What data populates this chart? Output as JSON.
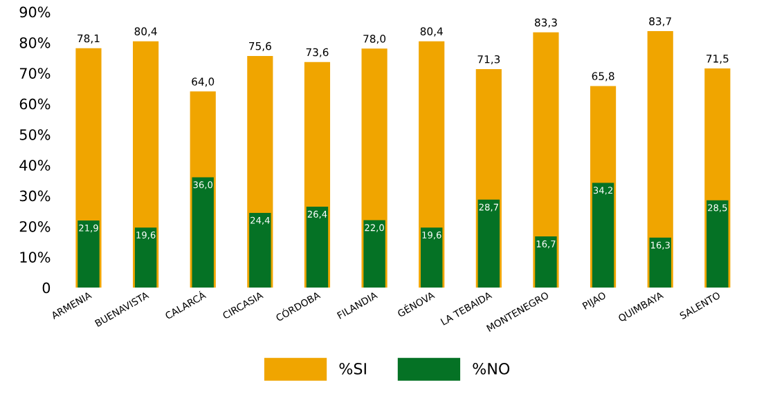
{
  "chart_data": {
    "type": "bar",
    "categories": [
      "ARMENIA",
      "BUENAVISTA",
      "CALARCÁ",
      "CIRCASIA",
      "CÓRDOBA",
      "FILANDIA",
      "GÉNOVA",
      "LA TEBAIDA",
      "MONTENEGRO",
      "PIJAO",
      "QUIMBAYA",
      "SALENTO"
    ],
    "series": [
      {
        "name": "%SI",
        "color": "#f0a500",
        "values": [
          78.1,
          80.4,
          64.0,
          75.6,
          73.6,
          78.0,
          80.4,
          71.3,
          83.3,
          65.8,
          83.7,
          71.5
        ],
        "value_labels": [
          "78,1",
          "80,4",
          "64,0",
          "75,6",
          "73,6",
          "78,0",
          "80,4",
          "71,3",
          "83,3",
          "65,8",
          "83,7",
          "71,5"
        ]
      },
      {
        "name": "%NO",
        "color": "#057225",
        "values": [
          21.9,
          19.6,
          36.0,
          24.4,
          26.4,
          22.0,
          19.6,
          28.7,
          16.7,
          34.2,
          16.3,
          28.5
        ],
        "value_labels": [
          "21,9",
          "19,6",
          "36,0",
          "24,4",
          "26,4",
          "22,0",
          "19,6",
          "28,7",
          "16,7",
          "34,2",
          "16,3",
          "28,5"
        ]
      }
    ],
    "ylim": [
      0,
      90
    ],
    "yticks": [
      {
        "value": 0,
        "label": "0"
      },
      {
        "value": 10,
        "label": "10%"
      },
      {
        "value": 20,
        "label": "20%"
      },
      {
        "value": 30,
        "label": "30%"
      },
      {
        "value": 40,
        "label": "40%"
      },
      {
        "value": 50,
        "label": "50%"
      },
      {
        "value": 60,
        "label": "60%"
      },
      {
        "value": 70,
        "label": "70%"
      },
      {
        "value": 80,
        "label": "80%"
      },
      {
        "value": 90,
        "label": "90%"
      }
    ],
    "grid": false,
    "legend": "bottom"
  }
}
